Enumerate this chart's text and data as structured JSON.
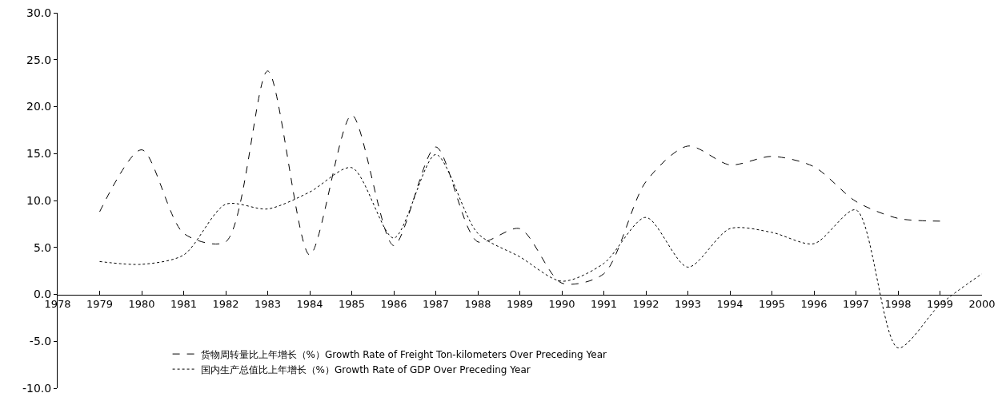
{
  "chart_data": {
    "type": "line",
    "x": [
      1979,
      1980,
      1981,
      1982,
      1983,
      1984,
      1985,
      1986,
      1987,
      1988,
      1989,
      1990,
      1991,
      1992,
      1993,
      1994,
      1995,
      1996,
      1997,
      1998,
      1999,
      2000
    ],
    "series": [
      {
        "name": "货物周转量比上年增长（%）Growth Rate of Freight Ton-kilometers Over Preceding Year",
        "color": "#000000",
        "line_style": "dashed",
        "values": [
          8.8,
          15.4,
          6.5,
          5.6,
          23.8,
          4.2,
          19.1,
          5.2,
          15.7,
          5.6,
          7.0,
          1.2,
          2.2,
          12.0,
          15.8,
          13.8,
          14.7,
          13.6,
          9.9,
          8.1,
          7.8,
          null
        ]
      },
      {
        "name": "国内生产总值比上年增长（%）Growth Rate of GDP Over Preceding Year",
        "color": "#000000",
        "line_style": "dotted",
        "values": [
          3.5,
          3.2,
          4.2,
          9.6,
          9.1,
          10.9,
          13.5,
          6.0,
          14.9,
          6.5,
          4.0,
          1.4,
          3.3,
          8.2,
          2.9,
          7.0,
          6.6,
          5.4,
          9.0,
          -5.7,
          -1.1,
          2.2
        ]
      }
    ],
    "xlim": [
      1978,
      2000
    ],
    "xticks": [
      1978,
      1979,
      1980,
      1981,
      1982,
      1983,
      1984,
      1985,
      1986,
      1987,
      1988,
      1989,
      1990,
      1991,
      1992,
      1993,
      1994,
      1995,
      1996,
      1997,
      1998,
      1999,
      2000
    ],
    "ylim": [
      -10,
      30
    ],
    "yticks": [
      {
        "value": -10,
        "label": "-10.0"
      },
      {
        "value": -5,
        "label": "-5.0"
      },
      {
        "value": 0,
        "label": "0.0"
      },
      {
        "value": 5,
        "label": "5.0"
      },
      {
        "value": 10,
        "label": "10.0"
      },
      {
        "value": 15,
        "label": "15.0"
      },
      {
        "value": 20,
        "label": "20.0"
      },
      {
        "value": 25,
        "label": "25.0"
      },
      {
        "value": 30,
        "label": "30.0"
      }
    ],
    "legend": "bottom left",
    "grid": false
  }
}
